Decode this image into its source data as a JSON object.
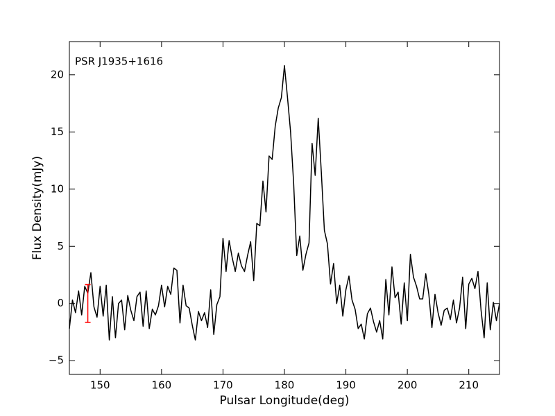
{
  "chart_data": {
    "type": "line",
    "annotation": "PSR J1935+1616",
    "xlabel": "Pulsar Longitude(deg)",
    "ylabel": "Flux Density(mJy)",
    "xlim": [
      145,
      215
    ],
    "ylim": [
      -6.2,
      22.9
    ],
    "xticks": [
      150,
      160,
      170,
      180,
      190,
      200,
      210
    ],
    "yticks": [
      {
        "value": -5,
        "label": "−5"
      },
      0,
      5,
      10,
      15,
      20
    ],
    "x": [
      145,
      145.5,
      146,
      146.5,
      147,
      147.5,
      148,
      148.5,
      149,
      149.5,
      150,
      150.5,
      151,
      151.5,
      152,
      152.5,
      153,
      153.5,
      154,
      154.5,
      155,
      155.5,
      156,
      156.5,
      157,
      157.5,
      158,
      158.5,
      159,
      159.5,
      160,
      160.5,
      161,
      161.5,
      162,
      162.5,
      163,
      163.5,
      164,
      164.5,
      165,
      165.5,
      166,
      166.5,
      167,
      167.5,
      168,
      168.5,
      169,
      169.5,
      170,
      170.5,
      171,
      171.5,
      172,
      172.5,
      173,
      173.5,
      174,
      174.5,
      175,
      175.5,
      176,
      176.5,
      177,
      177.5,
      178,
      178.5,
      179,
      179.5,
      180,
      180.5,
      181,
      181.5,
      182,
      182.5,
      183,
      183.5,
      184,
      184.5,
      185,
      185.5,
      186,
      186.5,
      187,
      187.5,
      188,
      188.5,
      189,
      189.5,
      190,
      190.5,
      191,
      191.5,
      192,
      192.5,
      193,
      193.5,
      194,
      194.5,
      195,
      195.5,
      196,
      196.5,
      197,
      197.5,
      198,
      198.5,
      199,
      199.5,
      200,
      200.5,
      201,
      201.5,
      202,
      202.5,
      203,
      203.5,
      204,
      204.5,
      205,
      205.5,
      206,
      206.5,
      207,
      207.5,
      208,
      208.5,
      209,
      209.5,
      210,
      210.5,
      211,
      211.5,
      212,
      212.5,
      213,
      213.5,
      214,
      214.5,
      215
    ],
    "series": [
      {
        "color": "#000000",
        "values": [
          -2.2,
          0.3,
          -0.8,
          1.1,
          -1.0,
          1.5,
          0.9,
          2.7,
          -0.3,
          -1.2,
          1.5,
          -1.1,
          1.6,
          -3.2,
          0.6,
          -3.0,
          0.0,
          0.3,
          -2.3,
          0.7,
          -0.6,
          -1.5,
          0.6,
          1.0,
          -2.0,
          1.1,
          -2.2,
          -0.5,
          -1.0,
          -0.2,
          1.6,
          -0.3,
          1.5,
          0.8,
          3.1,
          2.9,
          -1.7,
          1.6,
          -0.2,
          -0.4,
          -1.9,
          -3.2,
          -0.7,
          -1.5,
          -0.8,
          -2.1,
          1.2,
          -2.7,
          -0.1,
          0.6,
          5.7,
          2.8,
          5.5,
          4.0,
          2.8,
          4.4,
          3.3,
          2.8,
          4.2,
          5.4,
          2.0,
          7.0,
          6.8,
          10.7,
          8.0,
          12.9,
          12.6,
          15.5,
          17.1,
          18.0,
          20.8,
          18.0,
          15.0,
          10.5,
          4.2,
          5.9,
          2.9,
          4.3,
          5.3,
          14.0,
          11.2,
          16.2,
          11.5,
          6.4,
          5.2,
          1.7,
          3.5,
          0.0,
          1.6,
          -1.1,
          1.2,
          2.4,
          0.3,
          -0.5,
          -2.2,
          -1.8,
          -3.1,
          -0.9,
          -0.4,
          -1.6,
          -2.5,
          -1.5,
          -3.1,
          2.1,
          -1.0,
          3.2,
          0.5,
          1.0,
          -1.8,
          1.8,
          -1.5,
          4.3,
          2.3,
          1.5,
          0.4,
          0.4,
          2.6,
          0.8,
          -2.1,
          0.8,
          -0.8,
          -1.9,
          -0.6,
          -0.4,
          -1.4,
          0.3,
          -1.7,
          -0.4,
          2.3,
          -2.2,
          1.7,
          2.2,
          1.3,
          2.8,
          -0.6,
          -3.0,
          1.8,
          -2.3,
          0.1,
          -1.5,
          0.0
        ]
      }
    ],
    "error_bar": {
      "x": 148,
      "value": 0,
      "error": 1.65,
      "color": "#ff0000"
    }
  }
}
